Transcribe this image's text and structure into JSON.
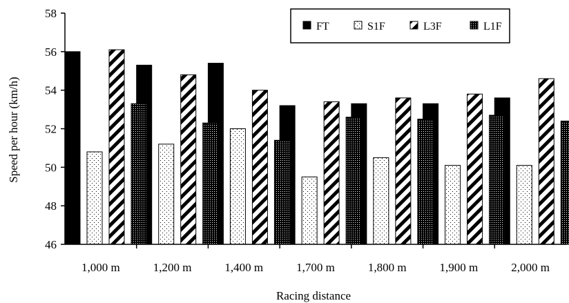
{
  "chart_data": {
    "type": "bar",
    "title": "",
    "xlabel": "Racing distance",
    "ylabel": "Speed per hour (km/h)",
    "ylim": [
      46,
      58
    ],
    "yticks": [
      "46",
      "48",
      "50",
      "52",
      "54",
      "56",
      "58"
    ],
    "categories": [
      "1,000 m",
      "1,200 m",
      "1,400 m",
      "1,700 m",
      "1,800 m",
      "1,900 m",
      "2,000 m"
    ],
    "series": [
      {
        "name": "FT",
        "pattern": "solid",
        "values": [
          56.0,
          55.3,
          55.4,
          53.2,
          53.3,
          53.3,
          53.6
        ]
      },
      {
        "name": "S1F",
        "pattern": "dotted",
        "values": [
          50.8,
          51.2,
          52.0,
          49.5,
          50.5,
          50.1,
          50.1
        ]
      },
      {
        "name": "L3F",
        "pattern": "diagonal",
        "values": [
          56.1,
          54.8,
          54.0,
          53.4,
          53.6,
          53.8,
          54.6
        ]
      },
      {
        "name": "L1F",
        "pattern": "dense",
        "values": [
          53.3,
          52.3,
          51.4,
          52.6,
          52.5,
          52.7,
          52.4
        ]
      }
    ],
    "grid": false,
    "legend_position": "top-right",
    "colors": {
      "bar_fill": "#000000",
      "background": "#ffffff"
    }
  }
}
